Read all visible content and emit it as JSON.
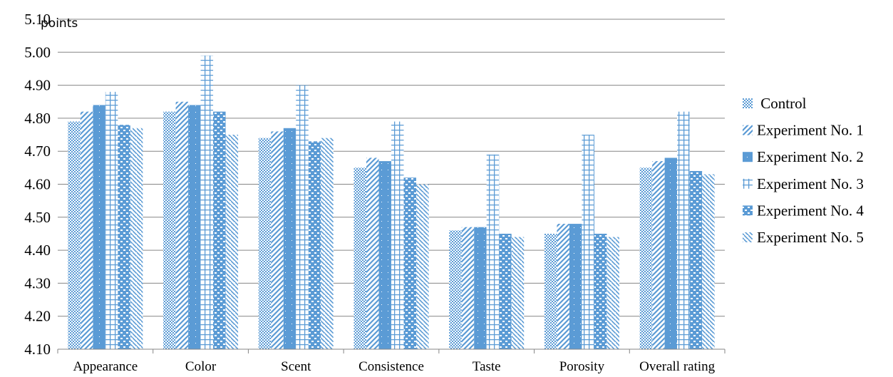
{
  "chart_data": {
    "type": "bar",
    "ylabel": "points",
    "ylim": [
      4.1,
      5.1
    ],
    "yticks": [
      "4.10",
      "4.20",
      "4.30",
      "4.40",
      "4.50",
      "4.60",
      "4.70",
      "4.80",
      "4.90",
      "5.00",
      "5.10"
    ],
    "grid": true,
    "legend_position": "right",
    "categories": [
      "Appearance",
      "Color",
      "Scent",
      "Consistence",
      "Taste",
      "Porosity",
      "Overall rating"
    ],
    "series": [
      {
        "name": " Control",
        "pattern": "dots",
        "values": [
          4.79,
          4.82,
          4.74,
          4.65,
          4.46,
          4.45,
          4.65
        ]
      },
      {
        "name": "Experiment No. 1",
        "pattern": "diag-up",
        "values": [
          4.82,
          4.85,
          4.76,
          4.68,
          4.47,
          4.48,
          4.67
        ]
      },
      {
        "name": "Experiment No. 2",
        "pattern": "solid",
        "values": [
          4.84,
          4.84,
          4.77,
          4.67,
          4.47,
          4.48,
          4.68
        ]
      },
      {
        "name": "Experiment No. 3",
        "pattern": "grid",
        "values": [
          4.88,
          4.99,
          4.9,
          4.79,
          4.69,
          4.75,
          4.82
        ]
      },
      {
        "name": "Experiment No. 4",
        "pattern": "check",
        "values": [
          4.78,
          4.82,
          4.73,
          4.62,
          4.45,
          4.45,
          4.64
        ]
      },
      {
        "name": "Experiment No. 5",
        "pattern": "diag-down",
        "values": [
          4.77,
          4.75,
          4.74,
          4.6,
          4.44,
          4.44,
          4.63
        ]
      }
    ],
    "colors": {
      "bar": "#5b9bd5",
      "grid": "#868686",
      "axis": "#868686"
    }
  }
}
